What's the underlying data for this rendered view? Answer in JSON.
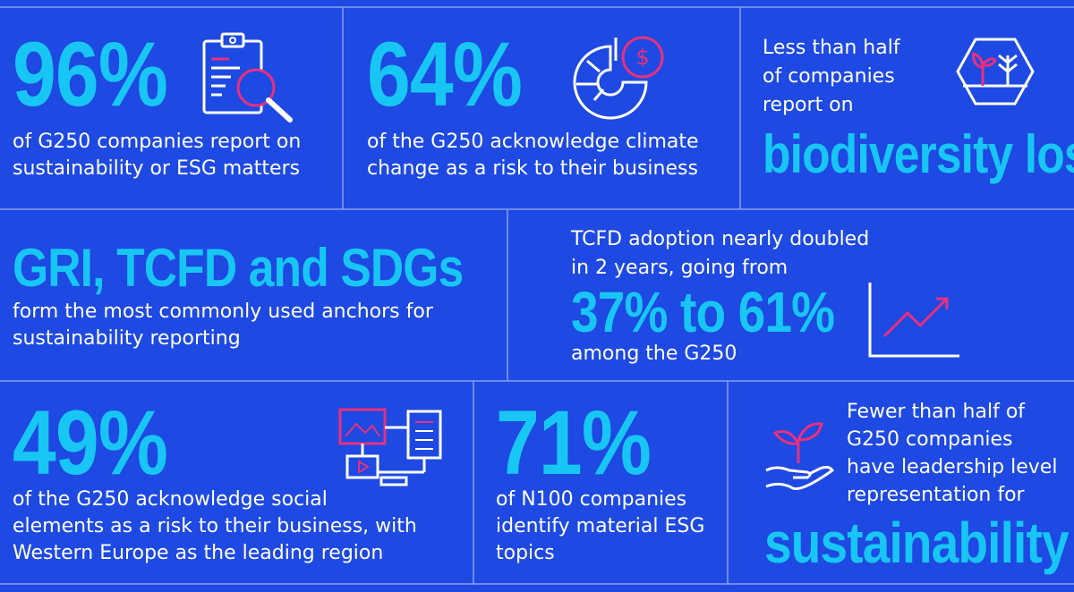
{
  "colors": {
    "background": "#1e49e2",
    "accent": "#18c6f5",
    "highlight": "#e8307e",
    "divider": "#8aa0f5"
  },
  "stat_96": {
    "value": "96%",
    "text": "of G250 companies report on sustainability or ESG matters",
    "icon": "report-magnifier-icon"
  },
  "stat_64": {
    "value": "64%",
    "text": "of the G250 acknowledge climate change as a risk to their business",
    "icon": "pie-chart-dollar-icon"
  },
  "biodiversity": {
    "lead_line1": "Less than half",
    "lead_line2": "of companies",
    "lead_line3": "report on",
    "highlight": "biodiversity loss",
    "icon": "plants-hexagon-icon"
  },
  "anchors": {
    "title": "GRI, TCFD and SDGs",
    "text": "form the most commonly used anchors for sustainability reporting"
  },
  "tcfd": {
    "lead_line1": "TCFD adoption nearly doubled",
    "lead_line2": "in 2 years, going from",
    "highlight": "37% to 61%",
    "tail": "among the G250",
    "icon": "trend-up-chart-icon"
  },
  "stat_49": {
    "value": "49%",
    "text": "of the G250 acknowledge social elements as a risk to their business, with Western Europe as the leading region",
    "icon": "connected-devices-icon"
  },
  "stat_71": {
    "value": "71%",
    "text": "of N100 companies identify material ESG topics"
  },
  "leadership": {
    "lead_line1": "Fewer than half of",
    "lead_line2": "G250 companies",
    "lead_line3": "have leadership level",
    "lead_line4": "representation for",
    "highlight": "sustainability",
    "icon": "hand-sprout-icon"
  }
}
